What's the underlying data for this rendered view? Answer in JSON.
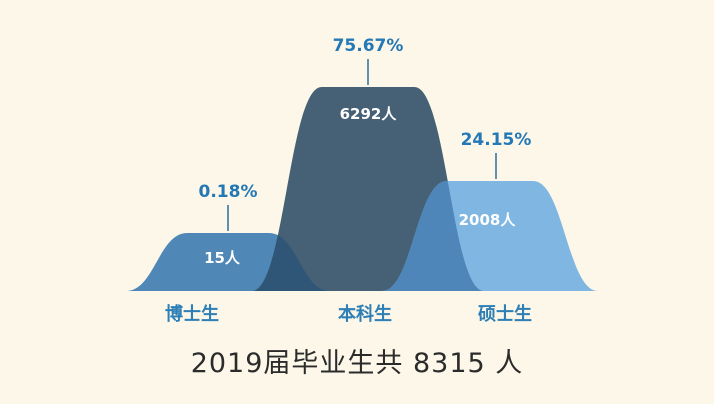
{
  "chart_data": {
    "type": "area",
    "categories": [
      "博士生",
      "本科生",
      "硕士生"
    ],
    "counts": [
      15,
      6292,
      2008
    ],
    "count_labels": [
      "15人",
      "6292人",
      "2008人"
    ],
    "percent_labels": [
      "0.18%",
      "75.67%",
      "24.15%"
    ],
    "percents": [
      0.18,
      75.67,
      24.15
    ],
    "total_text": "2019届毕业生共 8315 人",
    "colors": [
      "#4f88b6",
      "#466175",
      "#7fb7e2"
    ],
    "overlap_colors": [
      "#2f5676",
      "#4f86ba"
    ]
  }
}
